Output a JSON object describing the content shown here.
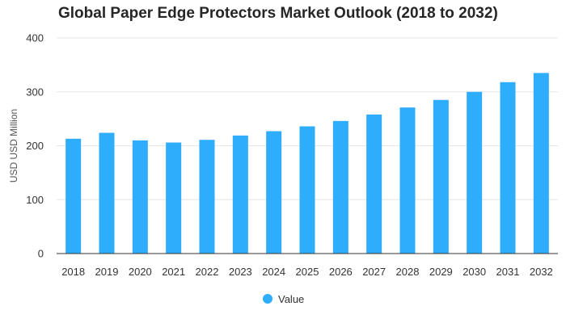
{
  "chart_data": {
    "type": "bar",
    "title": "Global Paper Edge Protectors Market Outlook (2018 to 2032)",
    "xlabel": "",
    "ylabel": "USD USD Million",
    "categories": [
      "2018",
      "2019",
      "2020",
      "2021",
      "2022",
      "2023",
      "2024",
      "2025",
      "2026",
      "2027",
      "2028",
      "2029",
      "2030",
      "2031",
      "2032"
    ],
    "series": [
      {
        "name": "Value",
        "values": [
          213,
          224,
          210,
          206,
          211,
          219,
          227,
          236,
          246,
          258,
          271,
          285,
          300,
          318,
          335
        ]
      }
    ],
    "ylim": [
      0,
      400
    ],
    "yticks": [
      "0",
      "100",
      "200",
      "300",
      "400"
    ],
    "grid": true,
    "legend": "bottom-center",
    "colors": {
      "bar": "#2fadfd",
      "grid": "#e6e6e6",
      "axis": "#333333"
    }
  }
}
